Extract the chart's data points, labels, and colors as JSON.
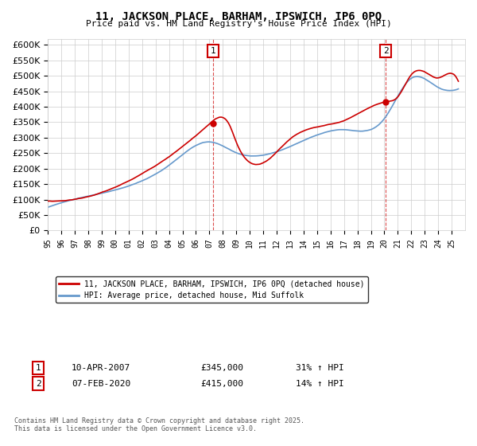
{
  "title": "11, JACKSON PLACE, BARHAM, IPSWICH, IP6 0PQ",
  "subtitle": "Price paid vs. HM Land Registry's House Price Index (HPI)",
  "legend_label1": "11, JACKSON PLACE, BARHAM, IPSWICH, IP6 0PQ (detached house)",
  "legend_label2": "HPI: Average price, detached house, Mid Suffolk",
  "annotation1_label": "1",
  "annotation1_date": "10-APR-2007",
  "annotation1_price": "£345,000",
  "annotation1_hpi": "31% ↑ HPI",
  "annotation2_label": "2",
  "annotation2_date": "07-FEB-2020",
  "annotation2_price": "£415,000",
  "annotation2_hpi": "14% ↑ HPI",
  "footer": "Contains HM Land Registry data © Crown copyright and database right 2025.\nThis data is licensed under the Open Government Licence v3.0.",
  "line1_color": "#cc0000",
  "line2_color": "#6699cc",
  "marker1_x": 2007.27,
  "marker1_y": 345000,
  "marker2_x": 2020.1,
  "marker2_y": 415000,
  "vline1_x": 2007.27,
  "vline2_x": 2020.1,
  "ylim": [
    0,
    620000
  ],
  "xlim_start": 1995,
  "xlim_end": 2026,
  "background_color": "#ffffff",
  "grid_color": "#cccccc"
}
